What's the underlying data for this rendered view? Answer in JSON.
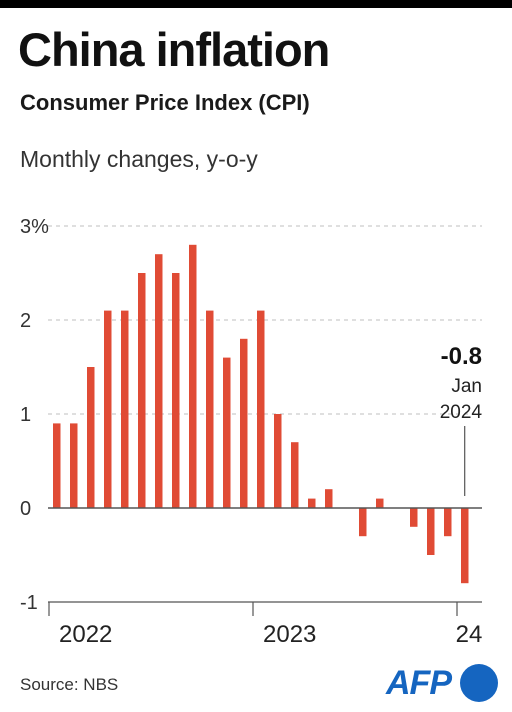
{
  "header": {
    "title": "China inflation",
    "subtitle": "Consumer Price Index (CPI)",
    "caption": "Monthly changes, y-o-y"
  },
  "footer": {
    "source": "Source: NBS",
    "logo_text": "AFP"
  },
  "colors": {
    "bar": "#e04b35",
    "axis": "#555555",
    "grid": "#cccccc",
    "logo": "#1565c0"
  },
  "chart_data": {
    "type": "bar",
    "categories": [
      "Jan 2022",
      "Feb 2022",
      "Mar 2022",
      "Apr 2022",
      "May 2022",
      "Jun 2022",
      "Jul 2022",
      "Aug 2022",
      "Sep 2022",
      "Oct 2022",
      "Nov 2022",
      "Dec 2022",
      "Jan 2023",
      "Feb 2023",
      "Mar 2023",
      "Apr 2023",
      "May 2023",
      "Jun 2023",
      "Jul 2023",
      "Aug 2023",
      "Sep 2023",
      "Oct 2023",
      "Nov 2023",
      "Dec 2023",
      "Jan 2024"
    ],
    "values": [
      0.9,
      0.9,
      1.5,
      2.1,
      2.1,
      2.5,
      2.7,
      2.5,
      2.8,
      2.1,
      1.6,
      1.8,
      2.1,
      1.0,
      0.7,
      0.1,
      0.2,
      0.0,
      -0.3,
      0.1,
      0.0,
      -0.2,
      -0.5,
      -0.3,
      -0.8
    ],
    "ylim": [
      -1,
      3
    ],
    "yticks": [
      {
        "value": -1,
        "label": "-1"
      },
      {
        "value": 0,
        "label": "0"
      },
      {
        "value": 1,
        "label": "1"
      },
      {
        "value": 2,
        "label": "2"
      },
      {
        "value": 3,
        "label": "3%"
      }
    ],
    "xticks": [
      {
        "index": 0,
        "label": "2022"
      },
      {
        "index": 12,
        "label": "2023"
      },
      {
        "index": 24,
        "label": "24"
      }
    ],
    "annotation": {
      "index": 24,
      "value_label": "-0.8",
      "line1": "Jan",
      "line2": "2024"
    },
    "grid": true,
    "legend": "none"
  }
}
